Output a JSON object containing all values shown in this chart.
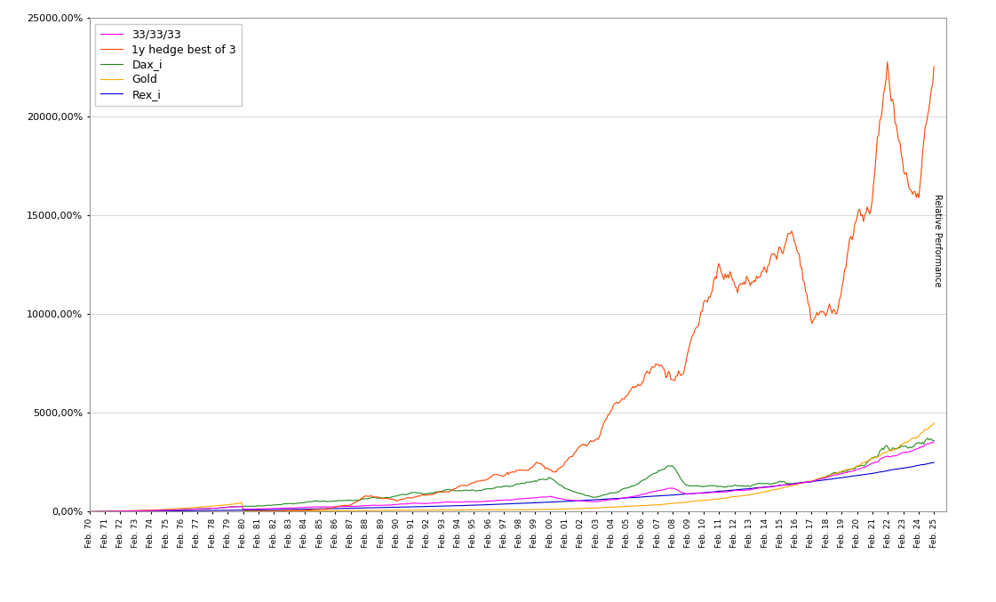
{
  "title": "",
  "ylabel_rotated": "Relative Performance",
  "ylim": [
    0,
    25000
  ],
  "yticks": [
    0,
    5000,
    10000,
    15000,
    20000,
    25000
  ],
  "ytick_labels": [
    "0,00%",
    "5000,00%",
    "10000,00%",
    "15000,00%",
    "20000,00%",
    "25000,00%"
  ],
  "x_start_year": 1970,
  "x_end_year": 2025,
  "legend_labels": [
    "33/33/33",
    "1y hedge best of 3",
    "Dax_i",
    "Gold",
    "Rex_i"
  ],
  "legend_colors": [
    "#ff00ff",
    "#ff4500",
    "#228B22",
    "#FFA500",
    "#0000CD"
  ],
  "line_widths": [
    1.0,
    1.0,
    1.0,
    1.0,
    1.0
  ],
  "background_color": "#ffffff",
  "grid_color": "#c8c8c8",
  "axis_label_fontsize": 8,
  "legend_fontsize": 9,
  "rotated_label_fontsize": 8
}
